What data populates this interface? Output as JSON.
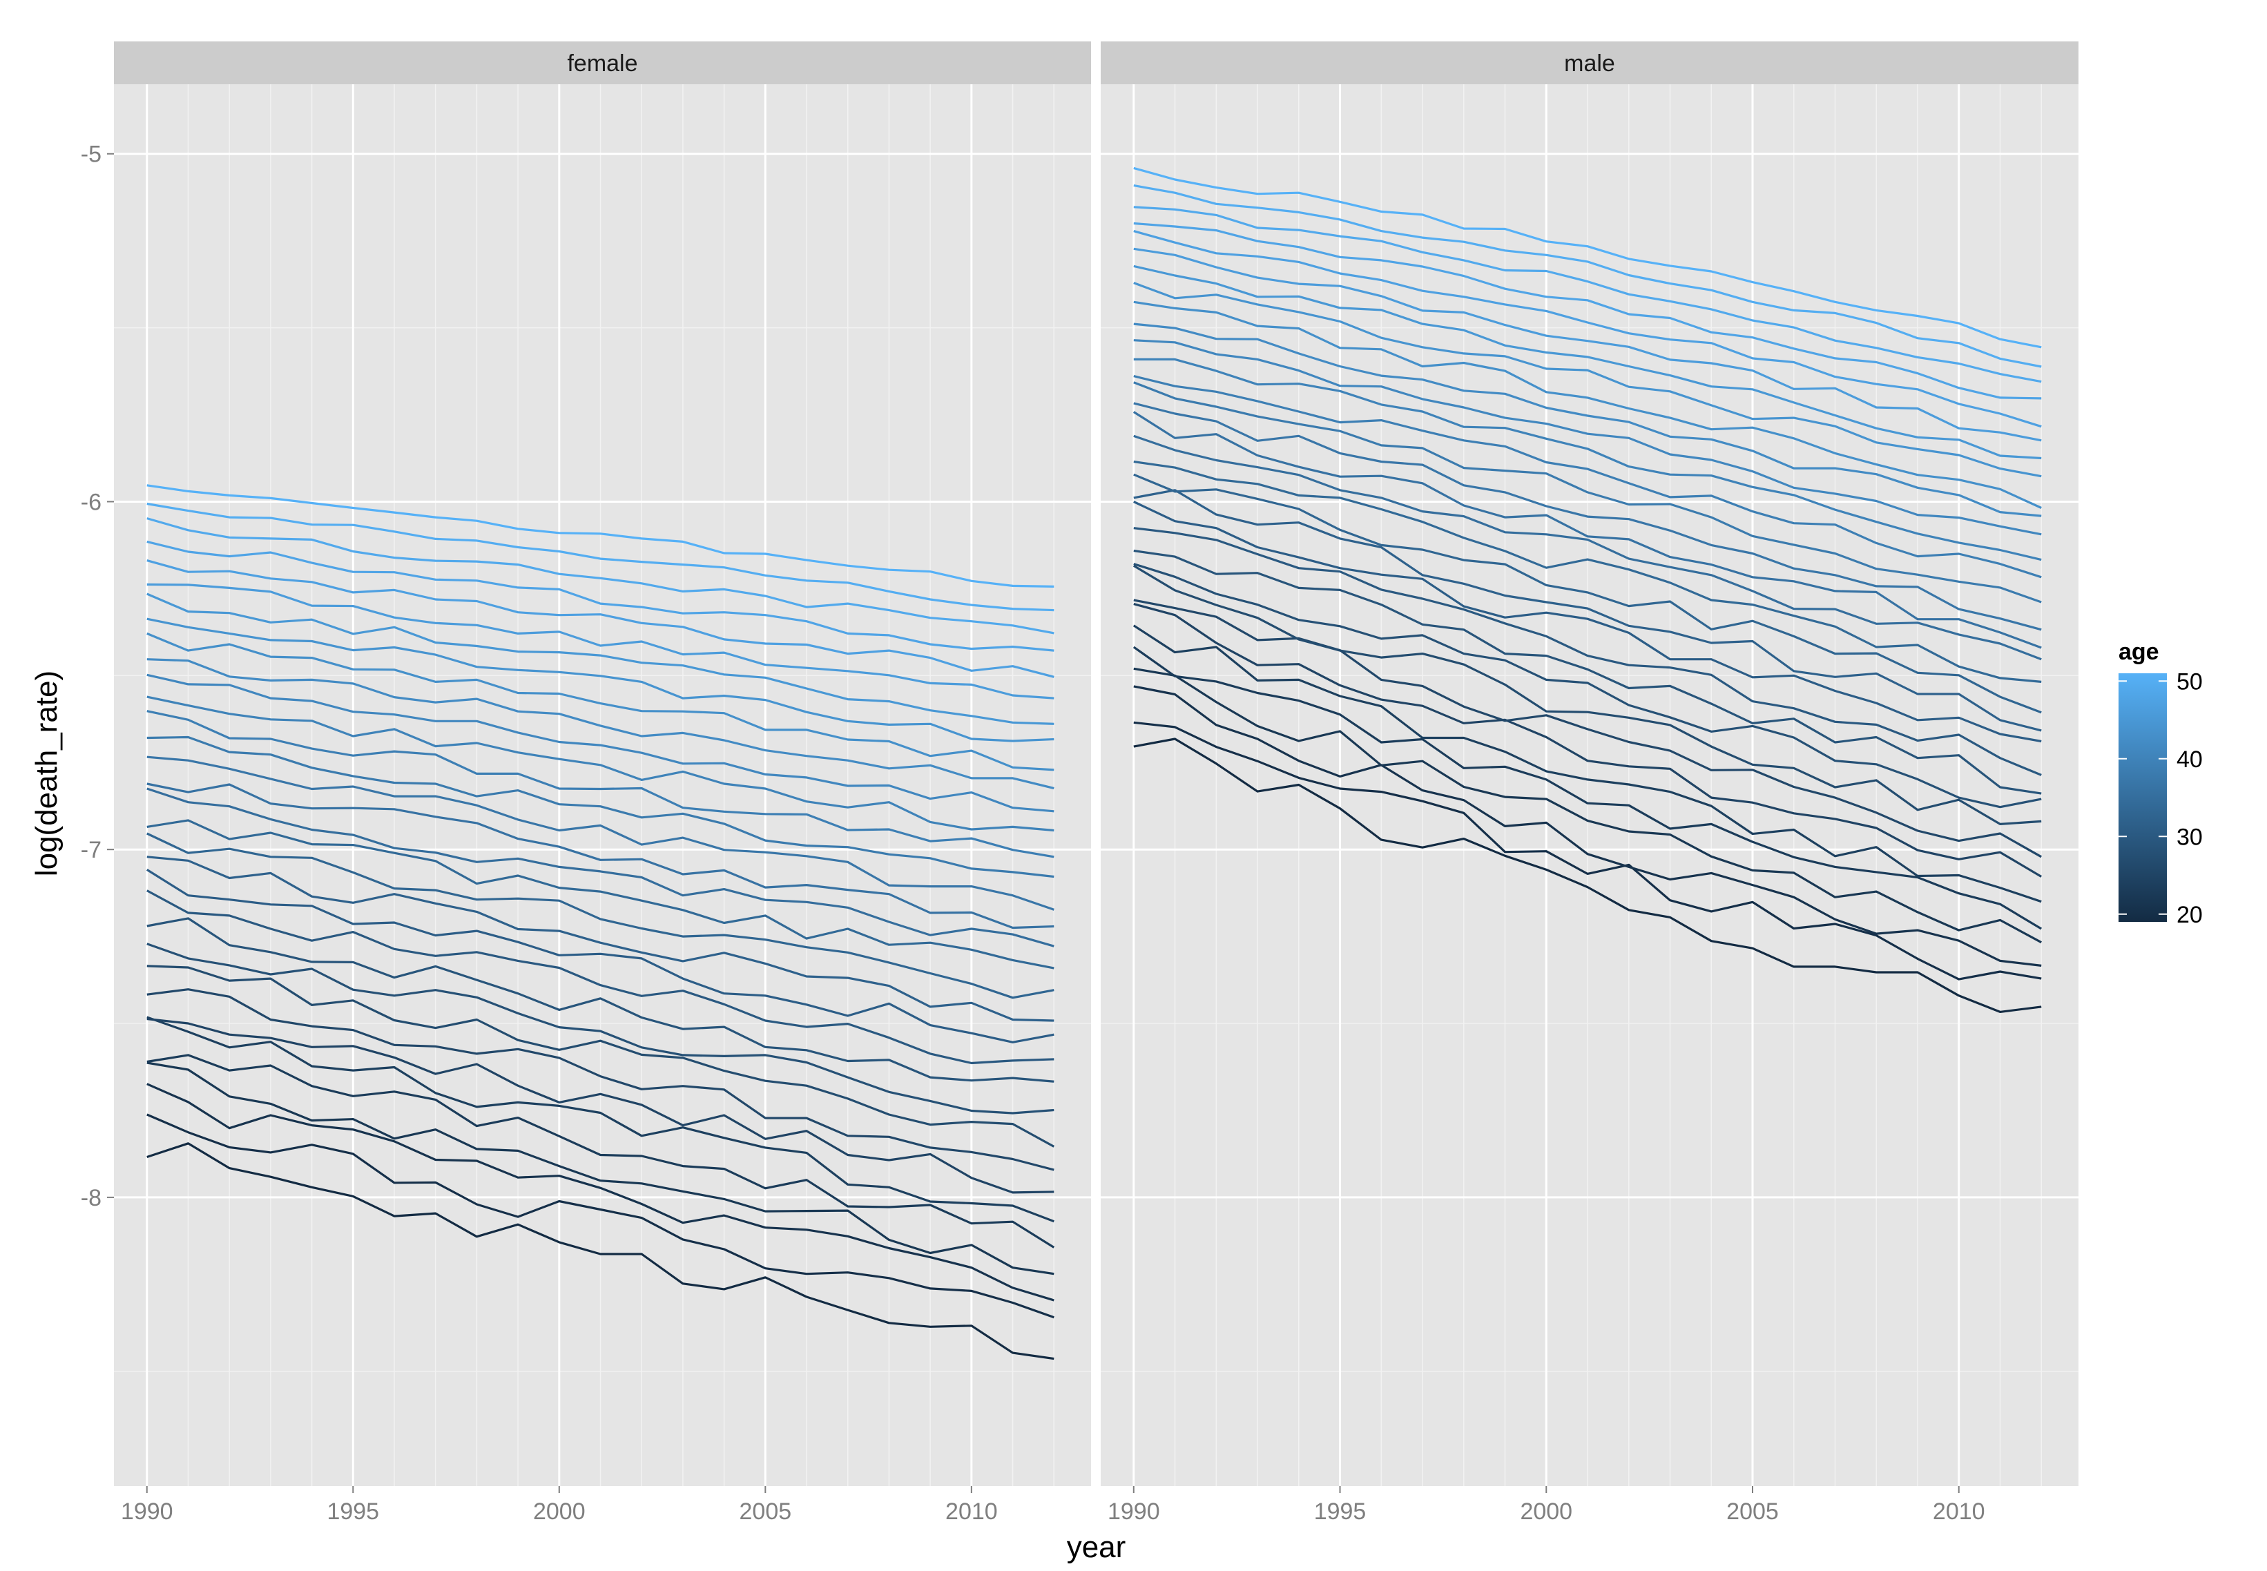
{
  "chart_data": {
    "type": "line",
    "facets": [
      "female",
      "male"
    ],
    "xlabel": "year",
    "ylabel": "log(death_rate)",
    "xlim": [
      1989.2,
      2012.9
    ],
    "ylim": [
      -8.83,
      -4.8
    ],
    "x_ticks": [
      1990,
      1995,
      2000,
      2005,
      2010
    ],
    "y_ticks": [
      -5,
      -6,
      -7,
      -8
    ],
    "x_tick_labels": [
      "1990",
      "1995",
      "2000",
      "2005",
      "2010"
    ],
    "y_tick_labels": [
      "-5",
      "-6",
      "-7",
      "-8"
    ],
    "grid": true,
    "legend": {
      "title": "age",
      "position": "right",
      "range": [
        19,
        51
      ],
      "ticks": [
        20,
        30,
        40,
        50
      ],
      "tick_labels": [
        "20",
        "30",
        "40",
        "50"
      ],
      "color_low": "#132b43",
      "color_high": "#56b1f7"
    },
    "x": [
      1990,
      1991,
      1992,
      1993,
      1994,
      1995,
      1996,
      1997,
      1998,
      1999,
      2000,
      2001,
      2002,
      2003,
      2004,
      2005,
      2006,
      2007,
      2008,
      2009,
      2010,
      2011,
      2012
    ],
    "series_model": {
      "description": "one line per age (19 to 51) per facet",
      "female": {
        "start_young": -7.86,
        "start_old": -5.95,
        "end_young": -8.45,
        "end_old": -6.25
      },
      "male": {
        "start_young": -6.67,
        "start_old": -5.05,
        "end_young": -7.48,
        "end_old": -5.55
      }
    },
    "series": [],
    "colors": {
      "panel_background": "#e5e5e5",
      "grid_major": "#ffffff",
      "grid_minor": "#f2f2f2",
      "strip_background": "#cccccc",
      "axis_text": "#7f7f7f"
    }
  }
}
